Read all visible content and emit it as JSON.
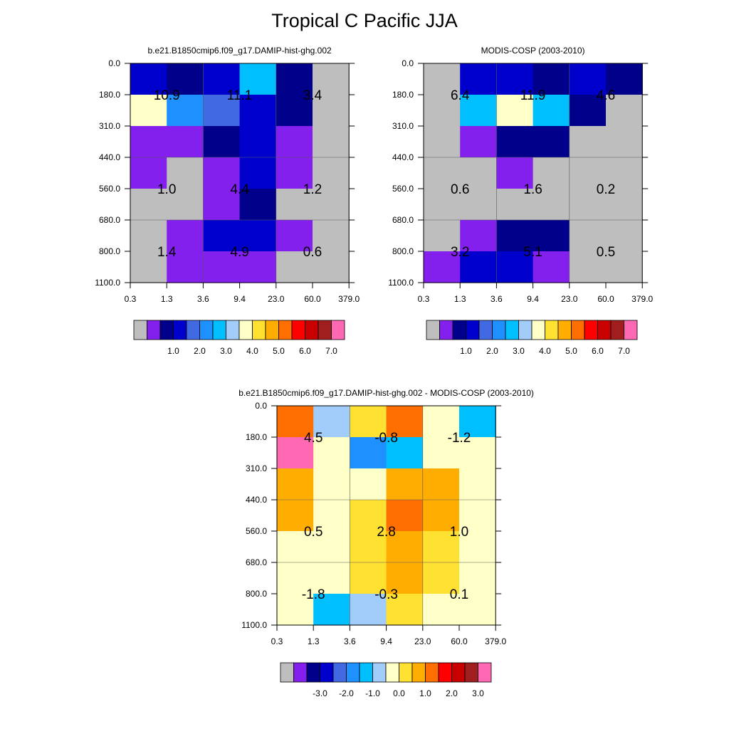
{
  "title": "Tropical C Pacific JJA",
  "chart_data": [
    {
      "type": "heatmap",
      "id": "model",
      "title": "b.e21.B1850cmip6.f09_g17.DAMIP-hist-ghg.002",
      "x_tick_labels": [
        "0.3",
        "1.3",
        "3.6",
        "9.4",
        "23.0",
        "60.0",
        "379.0"
      ],
      "y_tick_labels": [
        "0.0",
        "180.0",
        "310.0",
        "440.0",
        "560.0",
        "680.0",
        "800.0",
        "1100.0"
      ],
      "colorbar_labels": [
        "1.0",
        "2.0",
        "3.0",
        "4.0",
        "5.0",
        "6.0",
        "7.0"
      ],
      "cell_levels": [
        [
          3,
          2,
          3,
          6,
          2,
          0
        ],
        [
          8,
          5,
          4,
          3,
          2,
          0
        ],
        [
          1,
          1,
          2,
          3,
          1,
          0
        ],
        [
          1,
          0,
          1,
          3,
          1,
          0
        ],
        [
          0,
          0,
          1,
          2,
          0,
          0
        ],
        [
          0,
          1,
          3,
          3,
          1,
          0
        ],
        [
          0,
          1,
          1,
          1,
          0,
          0
        ]
      ],
      "annotations": [
        {
          "text": "10.9",
          "col": 1,
          "row": 1
        },
        {
          "text": "11.1",
          "col": 3,
          "row": 1
        },
        {
          "text": "3.4",
          "col": 5,
          "row": 1
        },
        {
          "text": "1.0",
          "col": 1,
          "row": 4
        },
        {
          "text": "4.4",
          "col": 3,
          "row": 4
        },
        {
          "text": "1.2",
          "col": 5,
          "row": 4
        },
        {
          "text": "1.4",
          "col": 1,
          "row": 6
        },
        {
          "text": "4.9",
          "col": 3,
          "row": 6
        },
        {
          "text": "0.6",
          "col": 5,
          "row": 6
        }
      ]
    },
    {
      "type": "heatmap",
      "id": "obs",
      "title": "MODIS-COSP (2003-2010)",
      "x_tick_labels": [
        "0.3",
        "1.3",
        "3.6",
        "9.4",
        "23.0",
        "60.0",
        "379.0"
      ],
      "y_tick_labels": [
        "0.0",
        "180.0",
        "310.0",
        "440.0",
        "560.0",
        "680.0",
        "800.0",
        "1100.0"
      ],
      "colorbar_labels": [
        "1.0",
        "2.0",
        "3.0",
        "4.0",
        "5.0",
        "6.0",
        "7.0"
      ],
      "cell_levels": [
        [
          0,
          3,
          3,
          2,
          3,
          2
        ],
        [
          0,
          6,
          8,
          6,
          2,
          0
        ],
        [
          0,
          1,
          2,
          2,
          0,
          0
        ],
        [
          0,
          0,
          1,
          0,
          0,
          0
        ],
        [
          0,
          0,
          0,
          0,
          0,
          0
        ],
        [
          0,
          1,
          2,
          2,
          0,
          0
        ],
        [
          1,
          3,
          3,
          1,
          0,
          0
        ]
      ],
      "annotations": [
        {
          "text": "6.4",
          "col": 1,
          "row": 1
        },
        {
          "text": "11.9",
          "col": 3,
          "row": 1
        },
        {
          "text": "4.6",
          "col": 5,
          "row": 1
        },
        {
          "text": "0.6",
          "col": 1,
          "row": 4
        },
        {
          "text": "1.6",
          "col": 3,
          "row": 4
        },
        {
          "text": "0.2",
          "col": 5,
          "row": 4
        },
        {
          "text": "3.2",
          "col": 1,
          "row": 6
        },
        {
          "text": "5.1",
          "col": 3,
          "row": 6
        },
        {
          "text": "0.5",
          "col": 5,
          "row": 6
        }
      ]
    },
    {
      "type": "heatmap",
      "id": "diff",
      "title": "b.e21.B1850cmip6.f09_g17.DAMIP-hist-ghg.002 - MODIS-COSP (2003-2010)",
      "x_tick_labels": [
        "0.3",
        "1.3",
        "3.6",
        "9.4",
        "23.0",
        "60.0",
        "379.0"
      ],
      "y_tick_labels": [
        "0.0",
        "180.0",
        "310.0",
        "440.0",
        "560.0",
        "680.0",
        "800.0",
        "1100.0"
      ],
      "colorbar_labels": [
        "-3.0",
        "-2.0",
        "-1.0",
        "0.0",
        "1.0",
        "2.0",
        "3.0"
      ],
      "cell_levels": [
        [
          11,
          7,
          9,
          11,
          8,
          6
        ],
        [
          15,
          8,
          5,
          6,
          8,
          8
        ],
        [
          10,
          8,
          8,
          10,
          10,
          8
        ],
        [
          10,
          8,
          9,
          11,
          10,
          8
        ],
        [
          8,
          8,
          9,
          10,
          9,
          8
        ],
        [
          8,
          8,
          9,
          10,
          9,
          8
        ],
        [
          8,
          6,
          7,
          9,
          8,
          8
        ]
      ],
      "annotations": [
        {
          "text": "4.5",
          "col": 1,
          "row": 1
        },
        {
          "text": "-0.8",
          "col": 3,
          "row": 1
        },
        {
          "text": "-1.2",
          "col": 5,
          "row": 1
        },
        {
          "text": "0.5",
          "col": 1,
          "row": 4
        },
        {
          "text": "2.8",
          "col": 3,
          "row": 4
        },
        {
          "text": "1.0",
          "col": 5,
          "row": 4
        },
        {
          "text": "-1.8",
          "col": 1,
          "row": 6
        },
        {
          "text": "-0.3",
          "col": 3,
          "row": 6
        },
        {
          "text": "0.1",
          "col": 5,
          "row": 6
        }
      ]
    }
  ],
  "palette": [
    "#bebebe",
    "#8420ee",
    "#00008b",
    "#0000cd",
    "#4169e1",
    "#1e90ff",
    "#00bfff",
    "#a2cdfa",
    "#ffffc8",
    "#ffe132",
    "#ffad00",
    "#ff6e00",
    "#ff0000",
    "#c80000",
    "#a01e1e",
    "#ff69b4"
  ]
}
